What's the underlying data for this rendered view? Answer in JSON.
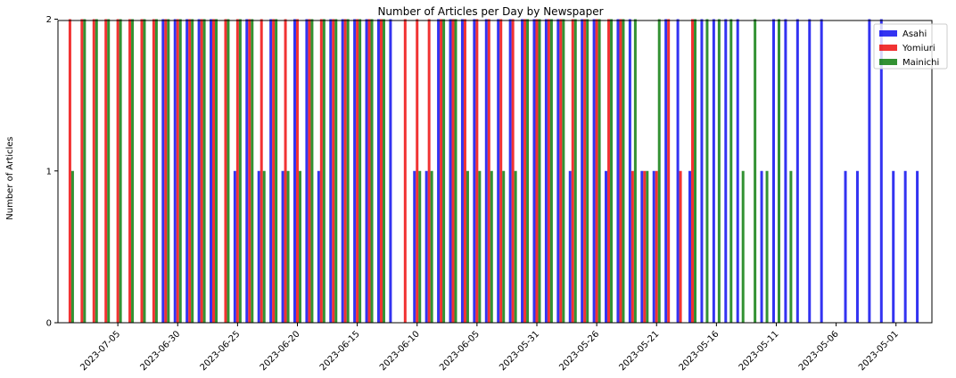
{
  "chart_data": {
    "type": "bar",
    "title": "Number of Articles per Day by Newspaper",
    "xlabel": "",
    "ylabel": "Number of Articles",
    "ylim": [
      0,
      2.0
    ],
    "yticks": [
      "0",
      "1",
      "2"
    ],
    "xdomain": [
      "2023-07-10",
      "2023-04-28"
    ],
    "xticks": [
      "2023-07-05",
      "2023-06-30",
      "2023-06-25",
      "2023-06-20",
      "2023-06-15",
      "2023-06-10",
      "2023-06-05",
      "2023-05-31",
      "2023-05-26",
      "2023-05-21",
      "2023-05-16",
      "2023-05-11",
      "2023-05-06",
      "2023-05-01"
    ],
    "legend_position": "top-right",
    "series": [
      {
        "name": "Asahi",
        "color": "#0000ee",
        "points": [
          [
            "2023-07-01",
            2
          ],
          [
            "2023-06-30",
            2
          ],
          [
            "2023-06-29",
            2
          ],
          [
            "2023-06-28",
            2
          ],
          [
            "2023-06-27",
            2
          ],
          [
            "2023-06-25",
            1
          ],
          [
            "2023-06-24",
            2
          ],
          [
            "2023-06-23",
            1
          ],
          [
            "2023-06-22",
            2
          ],
          [
            "2023-06-21",
            1
          ],
          [
            "2023-06-20",
            2
          ],
          [
            "2023-06-19",
            2
          ],
          [
            "2023-06-18",
            1
          ],
          [
            "2023-06-17",
            2
          ],
          [
            "2023-06-16",
            2
          ],
          [
            "2023-06-15",
            2
          ],
          [
            "2023-06-14",
            2
          ],
          [
            "2023-06-13",
            2
          ],
          [
            "2023-06-12",
            2
          ],
          [
            "2023-06-10",
            1
          ],
          [
            "2023-06-09",
            1
          ],
          [
            "2023-06-08",
            2
          ],
          [
            "2023-06-07",
            2
          ],
          [
            "2023-06-06",
            2
          ],
          [
            "2023-06-05",
            2
          ],
          [
            "2023-06-04",
            2
          ],
          [
            "2023-06-03",
            2
          ],
          [
            "2023-06-02",
            2
          ],
          [
            "2023-06-01",
            2
          ],
          [
            "2023-05-31",
            2
          ],
          [
            "2023-05-30",
            2
          ],
          [
            "2023-05-29",
            2
          ],
          [
            "2023-05-28",
            1
          ],
          [
            "2023-05-27",
            2
          ],
          [
            "2023-05-26",
            2
          ],
          [
            "2023-05-25",
            1
          ],
          [
            "2023-05-24",
            2
          ],
          [
            "2023-05-23",
            2
          ],
          [
            "2023-05-22",
            1
          ],
          [
            "2023-05-21",
            1
          ],
          [
            "2023-05-20",
            2
          ],
          [
            "2023-05-19",
            2
          ],
          [
            "2023-05-18",
            1
          ],
          [
            "2023-05-17",
            2
          ],
          [
            "2023-05-16",
            2
          ],
          [
            "2023-05-15",
            2
          ],
          [
            "2023-05-14",
            2
          ],
          [
            "2023-05-12",
            1
          ],
          [
            "2023-05-11",
            2
          ],
          [
            "2023-05-10",
            2
          ],
          [
            "2023-05-09",
            2
          ],
          [
            "2023-05-08",
            2
          ],
          [
            "2023-05-07",
            2
          ],
          [
            "2023-05-05",
            1
          ],
          [
            "2023-05-04",
            1
          ],
          [
            "2023-05-03",
            2
          ],
          [
            "2023-05-02",
            2
          ],
          [
            "2023-05-01",
            1
          ],
          [
            "2023-04-30",
            1
          ],
          [
            "2023-04-29",
            1
          ]
        ]
      },
      {
        "name": "Yomiuri",
        "color": "#ee0000",
        "points": [
          [
            "2023-07-09",
            2
          ],
          [
            "2023-07-08",
            2
          ],
          [
            "2023-07-07",
            2
          ],
          [
            "2023-07-06",
            2
          ],
          [
            "2023-07-05",
            2
          ],
          [
            "2023-07-04",
            2
          ],
          [
            "2023-07-03",
            2
          ],
          [
            "2023-07-02",
            2
          ],
          [
            "2023-07-01",
            2
          ],
          [
            "2023-06-30",
            2
          ],
          [
            "2023-06-29",
            2
          ],
          [
            "2023-06-28",
            2
          ],
          [
            "2023-06-27",
            2
          ],
          [
            "2023-06-26",
            2
          ],
          [
            "2023-06-25",
            2
          ],
          [
            "2023-06-24",
            2
          ],
          [
            "2023-06-23",
            2
          ],
          [
            "2023-06-22",
            2
          ],
          [
            "2023-06-21",
            2
          ],
          [
            "2023-06-20",
            2
          ],
          [
            "2023-06-19",
            2
          ],
          [
            "2023-06-18",
            2
          ],
          [
            "2023-06-17",
            2
          ],
          [
            "2023-06-16",
            2
          ],
          [
            "2023-06-15",
            2
          ],
          [
            "2023-06-14",
            2
          ],
          [
            "2023-06-13",
            2
          ],
          [
            "2023-06-11",
            2
          ],
          [
            "2023-06-10",
            2
          ],
          [
            "2023-06-09",
            2
          ],
          [
            "2023-06-08",
            2
          ],
          [
            "2023-06-07",
            2
          ],
          [
            "2023-06-06",
            2
          ],
          [
            "2023-06-05",
            2
          ],
          [
            "2023-06-04",
            2
          ],
          [
            "2023-06-03",
            2
          ],
          [
            "2023-06-02",
            2
          ],
          [
            "2023-06-01",
            2
          ],
          [
            "2023-05-31",
            2
          ],
          [
            "2023-05-30",
            2
          ],
          [
            "2023-05-29",
            2
          ],
          [
            "2023-05-28",
            2
          ],
          [
            "2023-05-27",
            2
          ],
          [
            "2023-05-26",
            2
          ],
          [
            "2023-05-25",
            2
          ],
          [
            "2023-05-24",
            2
          ],
          [
            "2023-05-23",
            1
          ],
          [
            "2023-05-22",
            1
          ],
          [
            "2023-05-21",
            1
          ],
          [
            "2023-05-20",
            2
          ],
          [
            "2023-05-19",
            1
          ],
          [
            "2023-05-18",
            2
          ]
        ]
      },
      {
        "name": "Mainichi",
        "color": "#007700",
        "points": [
          [
            "2023-07-09",
            1
          ],
          [
            "2023-07-08",
            2
          ],
          [
            "2023-07-07",
            2
          ],
          [
            "2023-07-06",
            2
          ],
          [
            "2023-07-05",
            2
          ],
          [
            "2023-07-04",
            2
          ],
          [
            "2023-07-03",
            2
          ],
          [
            "2023-07-02",
            2
          ],
          [
            "2023-07-01",
            2
          ],
          [
            "2023-06-30",
            2
          ],
          [
            "2023-06-29",
            2
          ],
          [
            "2023-06-28",
            2
          ],
          [
            "2023-06-27",
            2
          ],
          [
            "2023-06-26",
            2
          ],
          [
            "2023-06-25",
            2
          ],
          [
            "2023-06-24",
            2
          ],
          [
            "2023-06-23",
            1
          ],
          [
            "2023-06-22",
            2
          ],
          [
            "2023-06-21",
            1
          ],
          [
            "2023-06-20",
            1
          ],
          [
            "2023-06-19",
            2
          ],
          [
            "2023-06-18",
            2
          ],
          [
            "2023-06-17",
            2
          ],
          [
            "2023-06-16",
            2
          ],
          [
            "2023-06-15",
            2
          ],
          [
            "2023-06-14",
            2
          ],
          [
            "2023-06-13",
            2
          ],
          [
            "2023-06-10",
            1
          ],
          [
            "2023-06-09",
            1
          ],
          [
            "2023-06-08",
            2
          ],
          [
            "2023-06-07",
            2
          ],
          [
            "2023-06-06",
            1
          ],
          [
            "2023-06-05",
            1
          ],
          [
            "2023-06-04",
            1
          ],
          [
            "2023-06-03",
            1
          ],
          [
            "2023-06-02",
            1
          ],
          [
            "2023-06-01",
            2
          ],
          [
            "2023-05-31",
            2
          ],
          [
            "2023-05-30",
            2
          ],
          [
            "2023-05-29",
            2
          ],
          [
            "2023-05-28",
            2
          ],
          [
            "2023-05-27",
            2
          ],
          [
            "2023-05-26",
            2
          ],
          [
            "2023-05-25",
            2
          ],
          [
            "2023-05-24",
            2
          ],
          [
            "2023-05-23",
            2
          ],
          [
            "2023-05-22",
            1
          ],
          [
            "2023-05-21",
            2
          ],
          [
            "2023-05-18",
            2
          ],
          [
            "2023-05-17",
            2
          ],
          [
            "2023-05-16",
            2
          ],
          [
            "2023-05-15",
            2
          ],
          [
            "2023-05-14",
            1
          ],
          [
            "2023-05-13",
            2
          ],
          [
            "2023-05-12",
            1
          ],
          [
            "2023-05-11",
            2
          ],
          [
            "2023-05-10",
            1
          ]
        ]
      }
    ]
  }
}
